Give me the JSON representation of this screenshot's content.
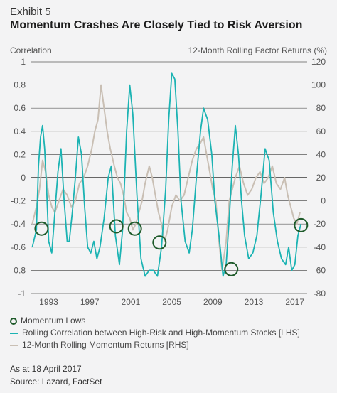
{
  "exhibit": "Exhibit 5",
  "title": "Momentum Crashes Are Closely Tied to Risk Aversion",
  "asof": "As at 18 April 2017",
  "source": "Source: Lazard, FactSet",
  "colors": {
    "correlation": "#1bb3b3",
    "momentum": "#c9bfb4",
    "lows": "#1e5a2a",
    "grid": "#5a5a5a",
    "zero": "#111111"
  },
  "chart_data": {
    "type": "line",
    "title": "Momentum Crashes Are Closely Tied to Risk Aversion",
    "ylabel_left": "Correlation",
    "ylabel_right": "12-Month Rolling Factor Returns (%)",
    "ylim_left": [
      -1,
      1
    ],
    "ylim_right": [
      -80,
      120
    ],
    "xlim": [
      1991.3,
      2018.2
    ],
    "x_ticks": [
      1993,
      1997,
      2001,
      2005,
      2009,
      2013,
      2017
    ],
    "y_ticks_left": [
      "1",
      "0.8",
      "0.6",
      "0.4",
      "0.2",
      "0",
      "-0.2",
      "-0.4",
      "-0.6",
      "-0.8",
      "-1"
    ],
    "y_ticks_right": [
      "120",
      "100",
      "80",
      "60",
      "40",
      "20",
      "0",
      "-20",
      "-40",
      "-60",
      "-80"
    ],
    "grid": "horizontal",
    "series": [
      {
        "name": "Rolling Correlation between High-Risk and High-Momentum Stocks [LHS]",
        "axis": "left",
        "x": [
          1991.4,
          1991.8,
          1992.0,
          1992.2,
          1992.4,
          1992.6,
          1992.8,
          1993.0,
          1993.3,
          1993.6,
          1993.9,
          1994.2,
          1994.5,
          1994.8,
          1995.0,
          1995.3,
          1995.6,
          1995.9,
          1996.2,
          1996.5,
          1996.8,
          1997.1,
          1997.4,
          1997.7,
          1998.0,
          1998.4,
          1998.8,
          1999.1,
          1999.5,
          1999.9,
          2000.2,
          2000.6,
          2000.9,
          2001.2,
          2001.6,
          2002.0,
          2002.4,
          2002.8,
          2003.2,
          2003.6,
          2004.0,
          2004.4,
          2004.7,
          2005.0,
          2005.3,
          2005.6,
          2005.9,
          2006.3,
          2006.7,
          2007.0,
          2007.4,
          2007.8,
          2008.1,
          2008.5,
          2008.9,
          2009.2,
          2009.6,
          2010.0,
          2010.3,
          2010.6,
          2010.9,
          2011.2,
          2011.5,
          2011.8,
          2012.1,
          2012.5,
          2012.9,
          2013.3,
          2013.7,
          2014.1,
          2014.5,
          2014.9,
          2015.3,
          2015.7,
          2016.1,
          2016.4,
          2016.7,
          2017.0,
          2017.3,
          2017.6
        ],
        "values": [
          -0.6,
          -0.45,
          0.1,
          0.35,
          0.45,
          0.25,
          -0.1,
          -0.55,
          -0.65,
          -0.3,
          0.05,
          0.25,
          -0.2,
          -0.55,
          -0.55,
          -0.3,
          0.0,
          0.35,
          0.2,
          -0.25,
          -0.6,
          -0.65,
          -0.55,
          -0.7,
          -0.6,
          -0.35,
          0.0,
          0.1,
          -0.5,
          -0.75,
          -0.45,
          0.4,
          0.8,
          0.55,
          -0.15,
          -0.7,
          -0.85,
          -0.8,
          -0.8,
          -0.85,
          -0.6,
          -0.1,
          0.5,
          0.9,
          0.85,
          0.4,
          -0.2,
          -0.55,
          -0.65,
          -0.45,
          0.0,
          0.4,
          0.6,
          0.5,
          0.2,
          -0.2,
          -0.5,
          -0.85,
          -0.75,
          -0.35,
          0.1,
          0.45,
          0.2,
          -0.2,
          -0.5,
          -0.7,
          -0.65,
          -0.5,
          -0.15,
          0.25,
          0.15,
          -0.3,
          -0.55,
          -0.7,
          -0.75,
          -0.6,
          -0.8,
          -0.75,
          -0.5,
          -0.4
        ]
      },
      {
        "name": "12-Month Rolling Momentum Returns [RHS]",
        "axis": "right",
        "x": [
          1991.4,
          1991.8,
          1992.1,
          1992.4,
          1992.7,
          1993.0,
          1993.3,
          1993.6,
          1994.0,
          1994.4,
          1994.8,
          1995.2,
          1995.6,
          1996.0,
          1996.4,
          1996.8,
          1997.2,
          1997.5,
          1997.8,
          1998.1,
          1998.4,
          1998.7,
          1999.0,
          1999.4,
          1999.7,
          2000.0,
          2000.3,
          2000.6,
          2000.9,
          2001.2,
          2001.5,
          2001.8,
          2002.1,
          2002.4,
          2002.8,
          2003.1,
          2003.4,
          2003.7,
          2004.0,
          2004.3,
          2004.6,
          2005.0,
          2005.4,
          2005.8,
          2006.2,
          2006.6,
          2007.0,
          2007.4,
          2007.8,
          2008.1,
          2008.4,
          2008.7,
          2009.0,
          2009.3,
          2009.6,
          2009.9,
          2010.3,
          2010.6,
          2010.9,
          2011.2,
          2011.6,
          2012.0,
          2012.4,
          2012.8,
          2013.2,
          2013.6,
          2014.0,
          2014.4,
          2014.8,
          2015.2,
          2015.6,
          2016.0,
          2016.3,
          2016.6,
          2016.9,
          2017.2,
          2017.5
        ],
        "values": [
          -20,
          -5,
          10,
          35,
          25,
          5,
          -5,
          -10,
          0,
          10,
          5,
          -5,
          0,
          15,
          20,
          30,
          45,
          60,
          70,
          100,
          80,
          60,
          45,
          30,
          20,
          15,
          5,
          -10,
          -15,
          -25,
          -20,
          -10,
          0,
          15,
          30,
          20,
          5,
          -10,
          -20,
          -35,
          -25,
          -5,
          5,
          0,
          5,
          20,
          35,
          45,
          50,
          55,
          40,
          25,
          10,
          0,
          -35,
          -60,
          -35,
          0,
          10,
          20,
          30,
          15,
          5,
          10,
          20,
          25,
          15,
          20,
          30,
          15,
          10,
          20,
          5,
          -5,
          -15,
          -20,
          -10
        ]
      }
    ],
    "momentum_lows": [
      {
        "x": 1992.3,
        "y": -0.44
      },
      {
        "x": 1999.6,
        "y": -0.42
      },
      {
        "x": 2001.4,
        "y": -0.44
      },
      {
        "x": 2003.8,
        "y": -0.56
      },
      {
        "x": 2010.8,
        "y": -0.79
      },
      {
        "x": 2017.6,
        "y": -0.41
      }
    ]
  },
  "legend": {
    "lows": "Momentum Lows",
    "correlation": "Rolling Correlation between High-Risk and High-Momentum Stocks [LHS]",
    "momentum": "12-Month Rolling Momentum Returns [RHS]"
  }
}
